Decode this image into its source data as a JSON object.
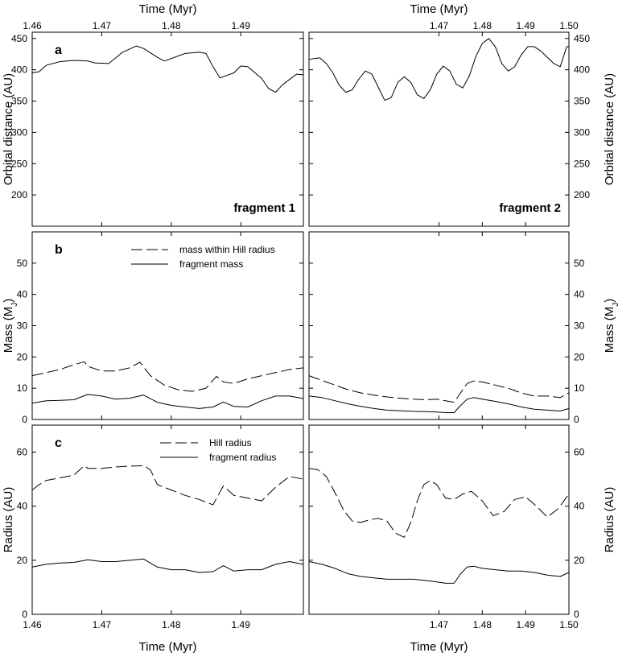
{
  "chart_data": {
    "type": "line",
    "top_xlabel": "Time (Myr)",
    "bottom_xlabel": "Time (Myr)",
    "columns": [
      {
        "fragment_label": "fragment 1",
        "xlim": [
          1.46,
          1.499
        ],
        "top_xticks": [
          "1.46",
          "1.47",
          "1.48",
          "1.49"
        ],
        "bottom_xticks": [
          "1.46",
          "1.47",
          "1.48",
          "1.49"
        ]
      },
      {
        "fragment_label": "fragment 2",
        "xlim": [
          1.44,
          1.5
        ],
        "top_xticks": [
          "1.47",
          "1.48",
          "1.49",
          "1.50"
        ],
        "bottom_xticks": [
          "1.47",
          "1.48",
          "1.49",
          "1.50"
        ]
      }
    ],
    "panels": [
      {
        "letter": "a",
        "ylabel": "Orbital distance (AU)",
        "ylim": [
          150,
          460
        ],
        "yticks": [
          "200",
          "250",
          "300",
          "350",
          "400",
          "450"
        ],
        "legend": [],
        "series": [
          {
            "style": "solid",
            "left": {
              "x": [
                1.46,
                1.461,
                1.462,
                1.464,
                1.466,
                1.468,
                1.469,
                1.471,
                1.473,
                1.475,
                1.476,
                1.478,
                1.479,
                1.48,
                1.482,
                1.484,
                1.485,
                1.486,
                1.487,
                1.489,
                1.49,
                1.491,
                1.493,
                1.494,
                1.495,
                1.496,
                1.498,
                1.499
              ],
              "y": [
                395,
                397,
                407,
                413,
                415,
                414,
                411,
                410,
                428,
                438,
                434,
                420,
                414,
                418,
                426,
                428,
                426,
                405,
                387,
                395,
                406,
                405,
                386,
                370,
                364,
                376,
                393,
                392
              ]
            },
            "right": {
              "x": [
                1.44,
                1.441,
                1.4425,
                1.444,
                1.4455,
                1.447,
                1.4485,
                1.45,
                1.4515,
                1.453,
                1.4545,
                1.456,
                1.4575,
                1.459,
                1.4605,
                1.462,
                1.4635,
                1.465,
                1.4665,
                1.468,
                1.4695,
                1.471,
                1.4725,
                1.474,
                1.4755,
                1.477,
                1.4785,
                1.48,
                1.4815,
                1.483,
                1.4845,
                1.486,
                1.4875,
                1.489,
                1.4905,
                1.492,
                1.4935,
                1.495,
                1.4965,
                1.498,
                1.4995,
                1.5
              ],
              "y": [
                416,
                418,
                419,
                410,
                395,
                375,
                364,
                368,
                385,
                398,
                393,
                372,
                351,
                356,
                380,
                389,
                380,
                360,
                354,
                368,
                393,
                406,
                398,
                377,
                371,
                390,
                421,
                442,
                450,
                437,
                410,
                398,
                405,
                424,
                437,
                437,
                430,
                420,
                410,
                405,
                437,
                437
              ]
            }
          }
        ]
      },
      {
        "letter": "b",
        "ylabel": "Mass (M",
        "ylabel_sub": "J",
        "ylabel_end": ")",
        "ylim": [
          0,
          60
        ],
        "yticks": [
          "0",
          "10",
          "20",
          "30",
          "40",
          "50"
        ],
        "legend": [
          {
            "label": "mass within Hill radius",
            "style": "dash"
          },
          {
            "label": "fragment mass",
            "style": "solid"
          }
        ],
        "series": [
          {
            "style": "dash",
            "left": {
              "x": [
                1.46,
                1.462,
                1.464,
                1.466,
                1.4675,
                1.468,
                1.47,
                1.472,
                1.474,
                1.4755,
                1.477,
                1.479,
                1.481,
                1.483,
                1.485,
                1.4865,
                1.4875,
                1.489,
                1.491,
                1.493,
                1.495,
                1.497,
                1.499
              ],
              "y": [
                14,
                15,
                16,
                17.5,
                18.5,
                17,
                15.5,
                15.5,
                16.5,
                18.3,
                14,
                11,
                9.5,
                9,
                10,
                13.8,
                12,
                11.5,
                13,
                14,
                15,
                16,
                16.5
              ]
            },
            "right": {
              "x": [
                1.44,
                1.443,
                1.446,
                1.449,
                1.452,
                1.455,
                1.458,
                1.461,
                1.464,
                1.467,
                1.4695,
                1.4715,
                1.4735,
                1.475,
                1.4765,
                1.478,
                1.48,
                1.483,
                1.486,
                1.489,
                1.492,
                1.495,
                1.498,
                1.5
              ],
              "y": [
                14,
                12.5,
                11,
                9.5,
                8.5,
                7.8,
                7.2,
                6.8,
                6.5,
                6.3,
                6.5,
                6,
                5.5,
                8.5,
                11.5,
                12.3,
                12,
                11,
                10,
                8.5,
                7.5,
                7.5,
                7,
                8.5
              ]
            }
          },
          {
            "style": "solid",
            "left": {
              "x": [
                1.46,
                1.462,
                1.464,
                1.466,
                1.468,
                1.47,
                1.472,
                1.474,
                1.476,
                1.478,
                1.48,
                1.482,
                1.484,
                1.486,
                1.4875,
                1.489,
                1.491,
                1.493,
                1.495,
                1.497,
                1.499
              ],
              "y": [
                5.2,
                6,
                6.1,
                6.3,
                8,
                7.5,
                6.5,
                6.8,
                7.8,
                5.5,
                4.5,
                4,
                3.5,
                4,
                5.6,
                4.2,
                4,
                6,
                7.5,
                7.5,
                6.7
              ]
            },
            "right": {
              "x": [
                1.44,
                1.443,
                1.446,
                1.449,
                1.452,
                1.455,
                1.458,
                1.461,
                1.464,
                1.467,
                1.4695,
                1.4715,
                1.4735,
                1.475,
                1.4765,
                1.478,
                1.48,
                1.483,
                1.486,
                1.489,
                1.492,
                1.495,
                1.498,
                1.5
              ],
              "y": [
                7.5,
                7,
                6,
                5,
                4.2,
                3.5,
                3,
                2.8,
                2.6,
                2.5,
                2.4,
                2.2,
                2.2,
                4.5,
                6.5,
                7,
                6.5,
                5.8,
                5,
                4,
                3.3,
                3,
                2.7,
                3.5
              ]
            }
          }
        ]
      },
      {
        "letter": "c",
        "ylabel": "Radius (AU)",
        "ylim": [
          0,
          70
        ],
        "yticks": [
          "0",
          "20",
          "40",
          "60"
        ],
        "legend": [
          {
            "label": "Hill radius",
            "style": "dash"
          },
          {
            "label": "fragment radius",
            "style": "solid"
          }
        ],
        "series": [
          {
            "style": "dash",
            "left": {
              "x": [
                1.46,
                1.461,
                1.462,
                1.464,
                1.466,
                1.4675,
                1.468,
                1.47,
                1.472,
                1.474,
                1.476,
                1.477,
                1.478,
                1.48,
                1.482,
                1.484,
                1.486,
                1.4875,
                1.489,
                1.491,
                1.493,
                1.495,
                1.497,
                1.499
              ],
              "y": [
                46,
                48,
                49.5,
                50.5,
                51.5,
                55,
                54,
                54,
                54.5,
                54.8,
                55,
                53.5,
                48,
                46,
                44,
                42.5,
                40.5,
                47.5,
                44,
                43,
                42,
                47,
                51,
                50
              ]
            },
            "right": {
              "x": [
                1.44,
                1.442,
                1.444,
                1.446,
                1.448,
                1.45,
                1.452,
                1.454,
                1.456,
                1.458,
                1.46,
                1.462,
                1.4635,
                1.465,
                1.4665,
                1.468,
                1.4695,
                1.4715,
                1.4735,
                1.4755,
                1.4775,
                1.48,
                1.4825,
                1.485,
                1.4875,
                1.49,
                1.4925,
                1.495,
                1.4975,
                1.5
              ],
              "y": [
                54,
                53.5,
                51,
                45,
                38.5,
                34.5,
                34,
                35,
                35.5,
                34.5,
                30,
                28.5,
                34,
                42,
                48,
                49.5,
                48,
                43,
                42.5,
                44.5,
                45.5,
                42,
                36.5,
                38,
                42.5,
                43.5,
                40,
                36,
                39,
                44.5
              ]
            }
          },
          {
            "style": "solid",
            "left": {
              "x": [
                1.46,
                1.462,
                1.464,
                1.466,
                1.468,
                1.47,
                1.472,
                1.474,
                1.476,
                1.478,
                1.48,
                1.482,
                1.484,
                1.486,
                1.4875,
                1.489,
                1.491,
                1.493,
                1.495,
                1.497,
                1.499
              ],
              "y": [
                17.5,
                18.5,
                19,
                19.2,
                20.2,
                19.5,
                19.5,
                20,
                20.5,
                17.5,
                16.5,
                16.5,
                15.5,
                15.8,
                18,
                16,
                16.5,
                16.5,
                18.5,
                19.5,
                18.5
              ]
            },
            "right": {
              "x": [
                1.44,
                1.443,
                1.446,
                1.449,
                1.452,
                1.455,
                1.458,
                1.461,
                1.464,
                1.467,
                1.4695,
                1.4715,
                1.4735,
                1.475,
                1.4765,
                1.478,
                1.48,
                1.483,
                1.486,
                1.489,
                1.492,
                1.495,
                1.498,
                1.5
              ],
              "y": [
                19.5,
                18.5,
                17,
                15,
                14,
                13.5,
                13,
                13,
                13,
                12.5,
                12,
                11.5,
                11.5,
                15,
                17.5,
                17.8,
                17,
                16.5,
                16,
                16,
                15.5,
                14.5,
                14,
                15.5
              ]
            }
          }
        ]
      }
    ]
  }
}
